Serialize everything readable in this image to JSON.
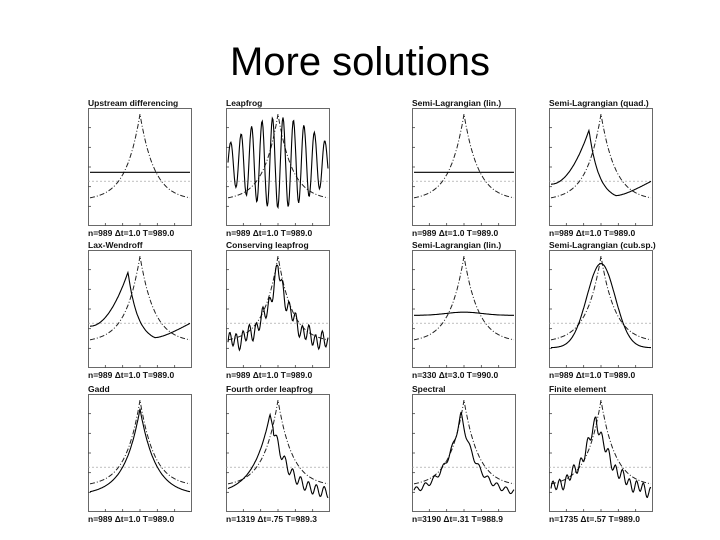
{
  "title": "More solutions",
  "panels": [
    {
      "title": "Upstream differencing",
      "footer": "n=989   Δt=1.0   T=989.0",
      "curve": "flat"
    },
    {
      "title": "Leapfrog",
      "footer": "n=989   Δt=1.0   T=989.0",
      "curve": "leapfrog"
    },
    {
      "title": "Semi-Lagrangian (lin.)",
      "footer": "n=989   Δt=1.0   T=989.0",
      "curve": "flat"
    },
    {
      "title": "Semi-Lagrangian (quad.)",
      "footer": "n=989   Δt=1.0   T=989.0",
      "curve": "shifted"
    },
    {
      "title": "Lax-Wendroff",
      "footer": "n=989   Δt=1.0   T=989.0",
      "curve": "shifted"
    },
    {
      "title": "Conserving leapfrog",
      "footer": "n=989   Δt=1.0   T=989.0",
      "curve": "noisy"
    },
    {
      "title": "Semi-Lagrangian (lin.)",
      "footer": "n=330   Δt=3.0   T=990.0",
      "curve": "damped"
    },
    {
      "title": "Semi-Lagrangian (cub.sp.)",
      "footer": "n=989   Δt=1.0   T=989.0",
      "curve": "smooth"
    },
    {
      "title": "Gadd",
      "footer": "n=989   Δt=1.0   T=989.0",
      "curve": "close"
    },
    {
      "title": "Fourth order leapfrog",
      "footer": "n=1319   Δt=.75   T=989.3",
      "curve": "lagnoisy"
    },
    {
      "title": "Spectral",
      "footer": "n=3190   Δt=.31   T=988.9",
      "curve": "mildnoise"
    },
    {
      "title": "Finite element",
      "footer": "n=1735   Δt=.57   T=989.0",
      "curve": "noisy2"
    }
  ]
}
